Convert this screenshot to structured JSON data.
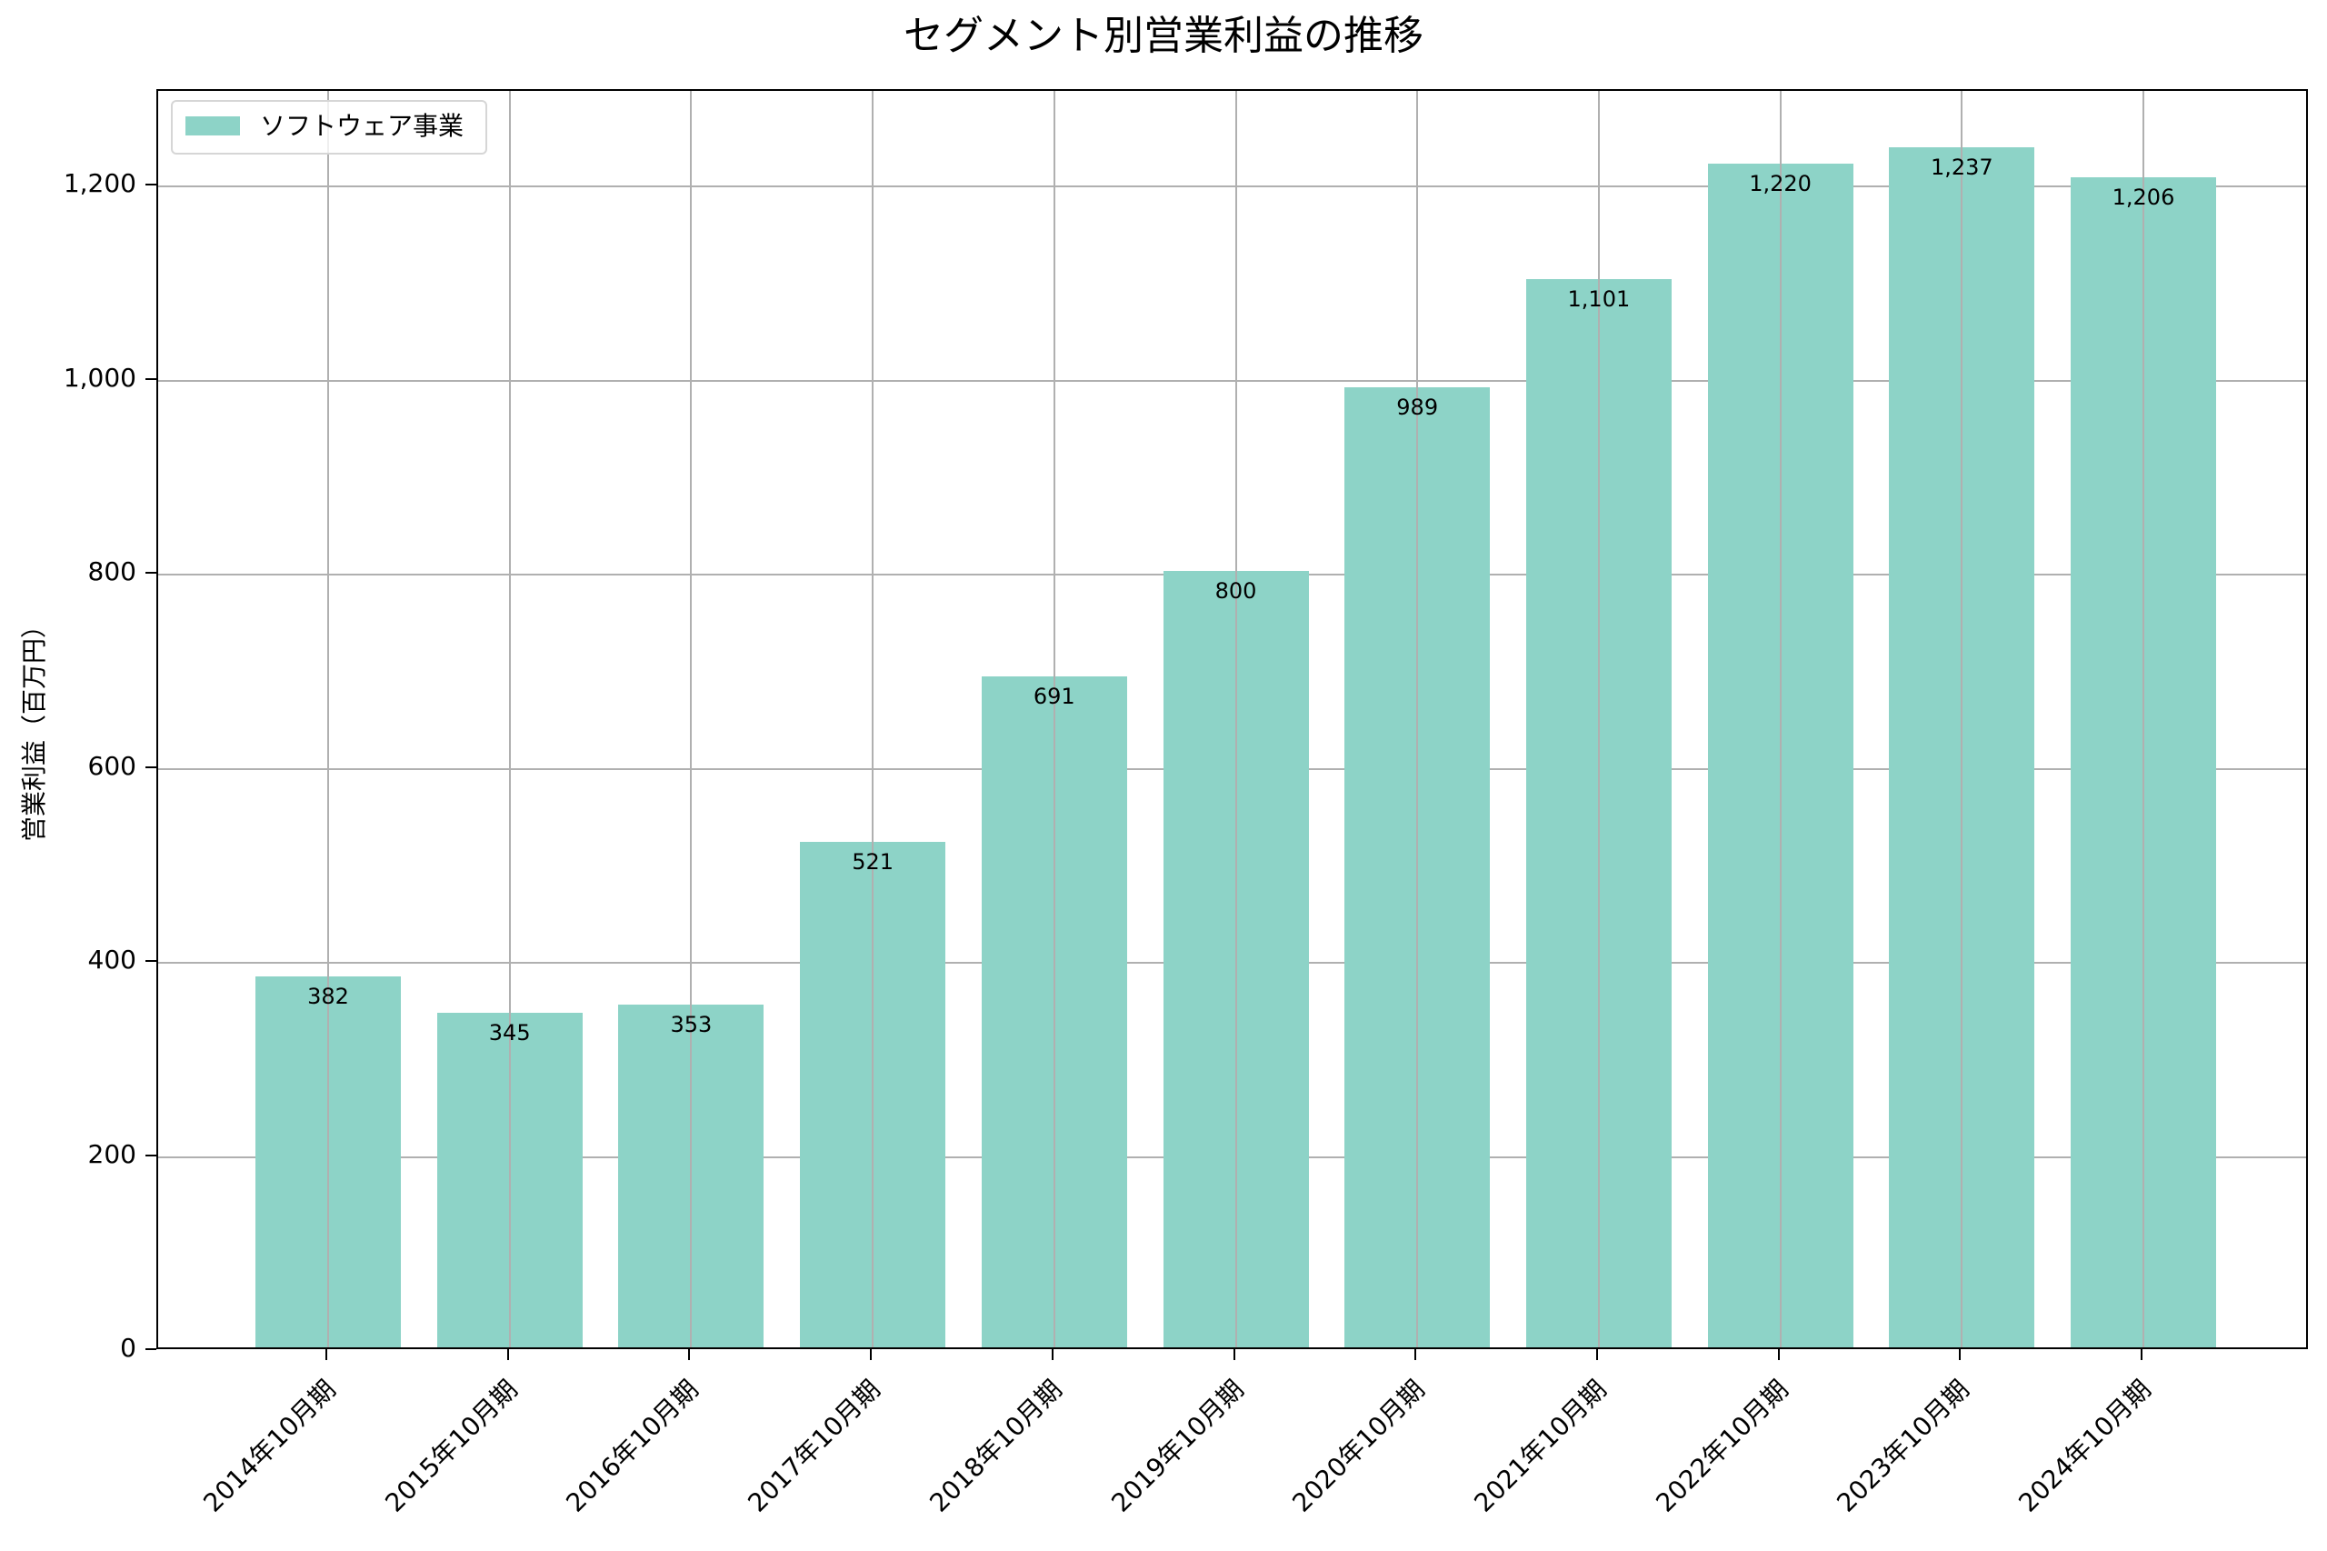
{
  "chart_data": {
    "type": "bar",
    "title": "セグメント別営業利益の推移",
    "xlabel": "",
    "ylabel": "営業利益（百万円）",
    "ylim": [
      0,
      1300
    ],
    "yticks": [
      "0",
      "200",
      "400",
      "600",
      "800",
      "1,000",
      "1,200"
    ],
    "grid": true,
    "legend_position": "upper left",
    "categories": [
      "2014年10月期",
      "2015年10月期",
      "2016年10月期",
      "2017年10月期",
      "2018年10月期",
      "2019年10月期",
      "2020年10月期",
      "2021年10月期",
      "2022年10月期",
      "2023年10月期",
      "2024年10月期"
    ],
    "series": [
      {
        "name": "ソフトウェア事業",
        "color": "#8dd3c7",
        "values": [
          382,
          345,
          353,
          521,
          691,
          800,
          989,
          1101,
          1220,
          1237,
          1206
        ],
        "labels": [
          "382",
          "345",
          "353",
          "521",
          "691",
          "800",
          "989",
          "1,101",
          "1,220",
          "1,237",
          "1,206"
        ]
      }
    ]
  }
}
